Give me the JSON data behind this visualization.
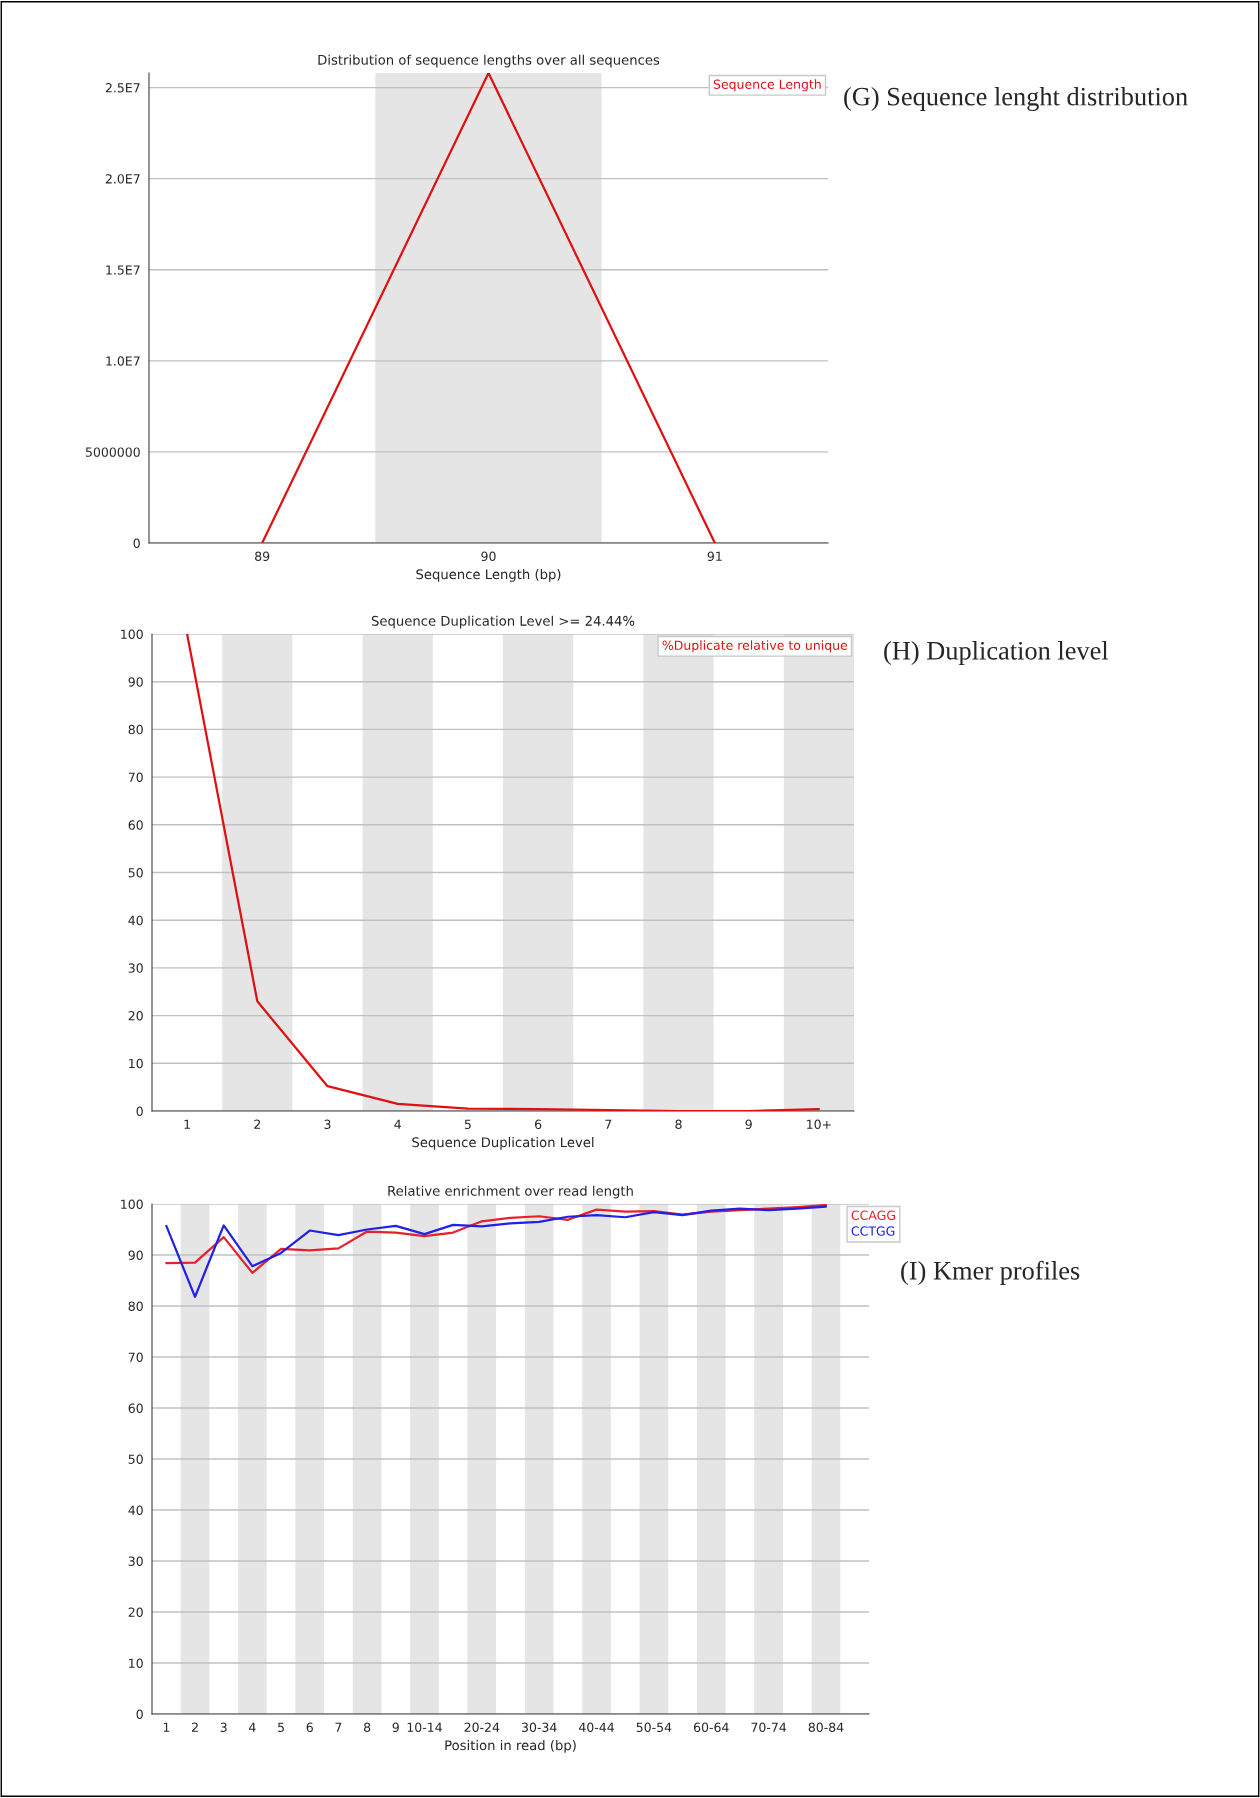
{
  "chart_data": [
    {
      "type": "line",
      "title": "Distribution of sequence lengths over all sequences",
      "xlabel": "Sequence Length (bp)",
      "x": [
        89,
        90,
        91
      ],
      "xlim": [
        88.5,
        91.5
      ],
      "xticks": [
        89,
        90,
        91
      ],
      "ylim": [
        0,
        25800000
      ],
      "yticks": [
        0,
        5000000,
        {
          "value": 10000000,
          "label": "1.0E7"
        },
        {
          "value": 15000000,
          "label": "1.5E7"
        },
        {
          "value": 20000000,
          "label": "2.0E7"
        },
        {
          "value": 25000000,
          "label": "2.5E7"
        }
      ],
      "series": [
        {
          "name": "Sequence Length",
          "color": "#e01010",
          "values": [
            0,
            25800000,
            0
          ]
        }
      ],
      "bands": [
        {
          "axis": "x",
          "from": 89.5,
          "to": 90.5,
          "color": "#e5e5e5"
        }
      ],
      "grid": "y",
      "legend": "top right",
      "marker": "none",
      "line_style": "solid",
      "annotations": [
        "(G) Sequence lenght distribution"
      ]
    },
    {
      "type": "line",
      "title": "Sequence Duplication Level >= 24.44%",
      "xlabel": "Sequence Duplication Level",
      "categories": [
        "1",
        "2",
        "3",
        "4",
        "5",
        "6",
        "7",
        "8",
        "9",
        "10+"
      ],
      "ylim": [
        0,
        100
      ],
      "yticks": [
        0,
        10,
        20,
        30,
        40,
        50,
        60,
        70,
        80,
        90,
        100
      ],
      "series": [
        {
          "name": "%Duplicate relative to unique",
          "color": "#e01010",
          "values": [
            100,
            23,
            5.2,
            1.5,
            0.5,
            0.4,
            0.2,
            0,
            0,
            0.4
          ]
        }
      ],
      "bands": [
        {
          "axis": "x",
          "from": "2",
          "to": "2",
          "color": "#e5e5e5"
        },
        {
          "axis": "x",
          "from": "4",
          "to": "4",
          "color": "#e5e5e5"
        },
        {
          "axis": "x",
          "from": "6",
          "to": "6",
          "color": "#e5e5e5"
        },
        {
          "axis": "x",
          "from": "8",
          "to": "8",
          "color": "#e5e5e5"
        },
        {
          "axis": "x",
          "from": "10+",
          "to": "10+",
          "color": "#e5e5e5"
        }
      ],
      "grid": "y",
      "legend": "top right",
      "marker": "none",
      "line_style": "solid",
      "annotations": [
        "(H) Duplication level"
      ]
    },
    {
      "type": "line",
      "title": "Relative enrichment over read length",
      "xlabel": "Position in read (bp)",
      "categories": [
        "1",
        "2",
        "3",
        "4",
        "5",
        "6",
        "7",
        "8",
        "9",
        "10-14",
        null,
        "20-24",
        null,
        "30-34",
        null,
        "40-44",
        null,
        "50-54",
        null,
        "60-64",
        null,
        "70-74",
        null,
        "80-84",
        null
      ],
      "ylim": [
        0,
        100
      ],
      "yticks": [
        0,
        10,
        20,
        30,
        40,
        50,
        60,
        70,
        80,
        90,
        100
      ],
      "series": [
        {
          "name": "CCAGG",
          "color": "#e8202a",
          "values": [
            88.4,
            88.5,
            93.5,
            86.5,
            91.2,
            90.9,
            91.3,
            94.6,
            94.4,
            93.7,
            94.4,
            96.6,
            97.3,
            97.6,
            96.9,
            98.9,
            98.5,
            98.6,
            97.9,
            98.5,
            98.8,
            99.1,
            99.4,
            99.8,
            null
          ]
        },
        {
          "name": "CCTGG",
          "color": "#2020e8",
          "values": [
            95.7,
            81.8,
            95.8,
            87.8,
            90.4,
            94.8,
            93.9,
            95.0,
            95.7,
            94.1,
            95.9,
            95.6,
            96.2,
            96.5,
            97.5,
            97.8,
            97.4,
            98.4,
            97.8,
            98.7,
            99.1,
            98.8,
            99.1,
            99.5,
            null
          ]
        }
      ],
      "bands": [
        {
          "axis": "x",
          "from": "2",
          "to": "2",
          "color": "#e5e5e5"
        },
        {
          "axis": "x",
          "from": "4",
          "to": "4",
          "color": "#e5e5e5"
        },
        {
          "axis": "x",
          "from": "6",
          "to": "6",
          "color": "#e5e5e5"
        },
        {
          "axis": "x",
          "from": "8",
          "to": "8",
          "color": "#e5e5e5"
        },
        {
          "axis": "x",
          "from": "10-14",
          "to": "10-14",
          "color": "#e5e5e5"
        },
        {
          "axis": "x",
          "from": "20-24",
          "to": "20-24",
          "color": "#e5e5e5"
        },
        {
          "axis": "x",
          "from": "30-34",
          "to": "30-34",
          "color": "#e5e5e5"
        },
        {
          "axis": "x",
          "from": "40-44",
          "to": "40-44",
          "color": "#e5e5e5"
        },
        {
          "axis": "x",
          "from": "50-54",
          "to": "50-54",
          "color": "#e5e5e5"
        },
        {
          "axis": "x",
          "from": "60-64",
          "to": "60-64",
          "color": "#e5e5e5"
        },
        {
          "axis": "x",
          "from": "70-74",
          "to": "70-74",
          "color": "#e5e5e5"
        },
        {
          "axis": "x",
          "from": "80-84",
          "to": "80-84",
          "color": "#e5e5e5"
        }
      ],
      "grid": "y",
      "legend": "top right",
      "marker": "none",
      "line_style": "solid",
      "annotations": [
        "(I) Kmer profiles"
      ]
    }
  ]
}
